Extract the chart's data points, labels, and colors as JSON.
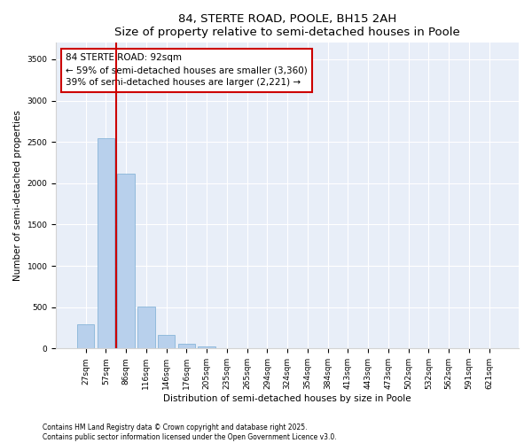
{
  "title": "84, STERTE ROAD, POOLE, BH15 2AH",
  "subtitle": "Size of property relative to semi-detached houses in Poole",
  "xlabel": "Distribution of semi-detached houses by size in Poole",
  "ylabel": "Number of semi-detached properties",
  "categories": [
    "27sqm",
    "57sqm",
    "86sqm",
    "116sqm",
    "146sqm",
    "176sqm",
    "205sqm",
    "235sqm",
    "265sqm",
    "294sqm",
    "324sqm",
    "354sqm",
    "384sqm",
    "413sqm",
    "443sqm",
    "473sqm",
    "502sqm",
    "532sqm",
    "562sqm",
    "591sqm",
    "621sqm"
  ],
  "values": [
    290,
    2540,
    2120,
    510,
    165,
    60,
    20,
    8,
    4,
    2,
    1,
    1,
    0,
    0,
    0,
    0,
    0,
    0,
    0,
    0,
    0
  ],
  "bar_color": "#b8d0ec",
  "bar_edge_color": "#7aadd4",
  "vline_x": 1.5,
  "annotation_text": "84 STERTE ROAD: 92sqm\n← 59% of semi-detached houses are smaller (3,360)\n39% of semi-detached houses are larger (2,221) →",
  "annotation_box_color": "#cc0000",
  "ylim": [
    0,
    3700
  ],
  "yticks": [
    0,
    500,
    1000,
    1500,
    2000,
    2500,
    3000,
    3500
  ],
  "footer_line1": "Contains HM Land Registry data © Crown copyright and database right 2025.",
  "footer_line2": "Contains public sector information licensed under the Open Government Licence v3.0.",
  "bg_color": "#e8eef8",
  "plot_bg_color": "#e8eef8",
  "title_fontsize": 9.5,
  "subtitle_fontsize": 8.5,
  "tick_fontsize": 6.5,
  "ylabel_fontsize": 7.5,
  "xlabel_fontsize": 7.5,
  "annotation_fontsize": 7.5,
  "footer_fontsize": 5.5
}
